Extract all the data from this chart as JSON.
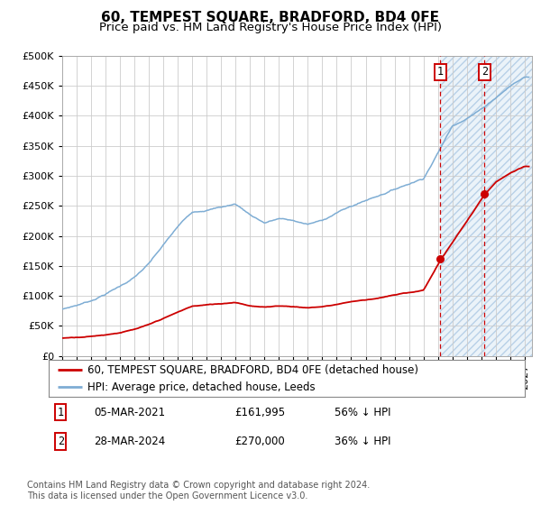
{
  "title": "60, TEMPEST SQUARE, BRADFORD, BD4 0FE",
  "subtitle": "Price paid vs. HM Land Registry's House Price Index (HPI)",
  "legend_line1": "60, TEMPEST SQUARE, BRADFORD, BD4 0FE (detached house)",
  "legend_line2": "HPI: Average price, detached house, Leeds",
  "footnote": "Contains HM Land Registry data © Crown copyright and database right 2024.\nThis data is licensed under the Open Government Licence v3.0.",
  "marker1_label": "1",
  "marker1_date": "05-MAR-2021",
  "marker1_price": "£161,995",
  "marker1_hpi": "56% ↓ HPI",
  "marker1_x": 2021.17,
  "marker1_y": 161995,
  "marker2_label": "2",
  "marker2_date": "28-MAR-2024",
  "marker2_price": "£270,000",
  "marker2_hpi": "36% ↓ HPI",
  "marker2_x": 2024.23,
  "marker2_y": 270000,
  "hpi_color": "#7eadd4",
  "price_color": "#cc0000",
  "dashed_line_color": "#cc0000",
  "grid_color": "#cccccc",
  "hatch_fill_color": "#c8dff0",
  "background_color": "#ffffff",
  "ylim": [
    0,
    500000
  ],
  "ytick_step": 50000,
  "xlim_start": 1995,
  "xlim_end": 2027.5,
  "title_fontsize": 11,
  "subtitle_fontsize": 9.5,
  "axis_fontsize": 8,
  "legend_fontsize": 8.5,
  "annot_fontsize": 8.5,
  "footnote_fontsize": 7,
  "hpi_years": [
    1995,
    1996,
    1997,
    1998,
    1999,
    2000,
    2001,
    2002,
    2003,
    2004,
    2005,
    2006,
    2007,
    2008,
    2009,
    2010,
    2011,
    2012,
    2013,
    2014,
    2015,
    2016,
    2017,
    2018,
    2019,
    2020,
    2021,
    2022,
    2023,
    2024,
    2025,
    2026,
    2027
  ],
  "hpi_vals": [
    78000,
    85000,
    93000,
    105000,
    118000,
    133000,
    155000,
    185000,
    215000,
    240000,
    245000,
    250000,
    255000,
    238000,
    225000,
    232000,
    228000,
    222000,
    228000,
    242000,
    252000,
    262000,
    272000,
    282000,
    292000,
    302000,
    345000,
    390000,
    405000,
    420000,
    440000,
    460000,
    475000
  ],
  "red_years": [
    1995,
    1996,
    1997,
    1998,
    1999,
    2000,
    2001,
    2002,
    2003,
    2004,
    2005,
    2006,
    2007,
    2008,
    2009,
    2010,
    2011,
    2012,
    2013,
    2014,
    2015,
    2016,
    2017,
    2018,
    2019,
    2020,
    2021.17,
    2024.23,
    2025,
    2026,
    2027
  ],
  "red_vals": [
    30000,
    32000,
    34000,
    37000,
    41000,
    46000,
    53000,
    63000,
    73000,
    83000,
    85000,
    87000,
    90000,
    85000,
    82000,
    85000,
    84000,
    82000,
    84000,
    88000,
    93000,
    96000,
    100000,
    104000,
    108000,
    112000,
    161995,
    270000,
    290000,
    305000,
    315000
  ]
}
